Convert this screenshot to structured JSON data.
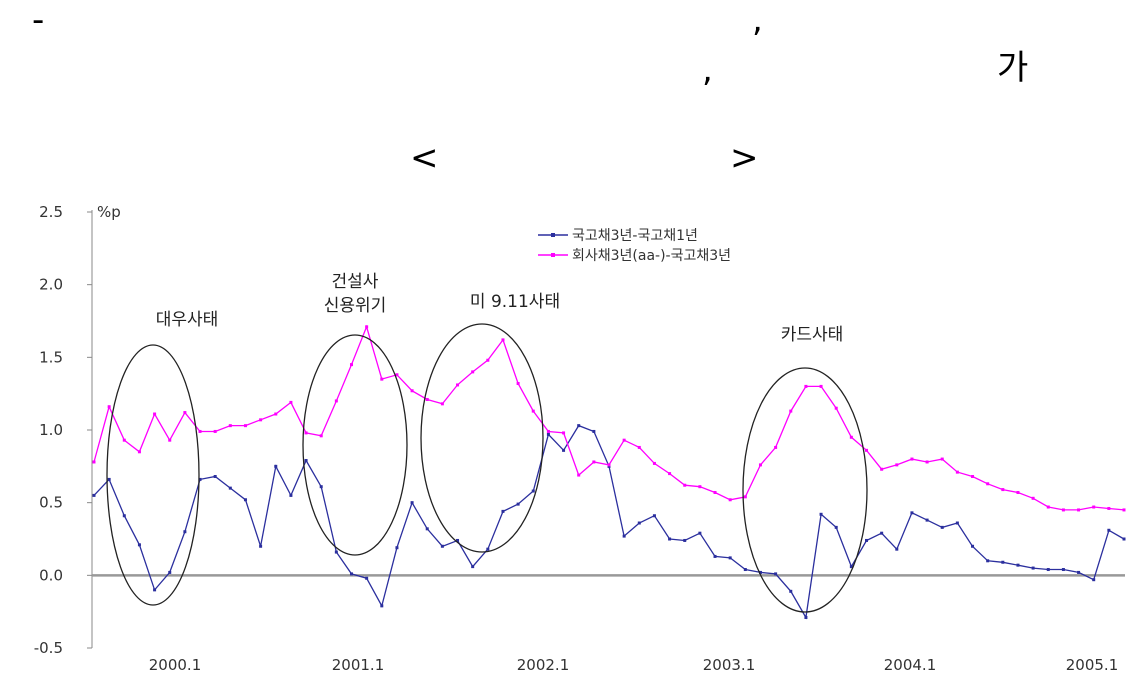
{
  "header": {
    "dash": "-",
    "comma1": ",",
    "comma2": ",",
    "ga": "가",
    "bracket_left": "<",
    "bracket_right": ">"
  },
  "chart_data": {
    "type": "line",
    "ylabel": "%p",
    "ylim": [
      -0.5,
      2.5
    ],
    "yticks": [
      -0.5,
      0.0,
      0.5,
      1.0,
      1.5,
      2.0,
      2.5
    ],
    "ytick_labels": [
      "-0.5",
      "0.0",
      "0.5",
      "1.0",
      "1.5",
      "2.0",
      "2.5"
    ],
    "x_start": "1999.7",
    "x_end": "2005.3",
    "xticks": [
      "2000.1",
      "2001.1",
      "2002.1",
      "2003.1",
      "2004.1",
      "2005.1"
    ],
    "zero_line": true,
    "legend_position": "top-center",
    "series": [
      {
        "name": "국고채3년-국고채1년",
        "color": "#2b2f9e",
        "values": [
          0.55,
          0.66,
          0.41,
          0.21,
          -0.1,
          0.02,
          0.3,
          0.66,
          0.68,
          0.6,
          0.52,
          0.2,
          0.75,
          0.55,
          0.79,
          0.61,
          0.16,
          0.01,
          -0.02,
          -0.21,
          0.19,
          0.5,
          0.32,
          0.2,
          0.24,
          0.06,
          0.18,
          0.44,
          0.49,
          0.58,
          0.97,
          0.86,
          1.03,
          0.99,
          0.75,
          0.27,
          0.36,
          0.41,
          0.25,
          0.24,
          0.29,
          0.13,
          0.12,
          0.04,
          0.02,
          0.01,
          -0.11,
          -0.29,
          0.42,
          0.33,
          0.06,
          0.24,
          0.29,
          0.18,
          0.43,
          0.38,
          0.33,
          0.36,
          0.2,
          0.1,
          0.09,
          0.07,
          0.05,
          0.04,
          0.04,
          0.02,
          -0.03,
          0.31,
          0.25
        ]
      },
      {
        "name": "회사채3년(aa-)-국고채3년",
        "color": "#ff00ff",
        "values": [
          0.78,
          1.16,
          0.93,
          0.85,
          1.11,
          0.93,
          1.12,
          0.99,
          0.99,
          1.03,
          1.03,
          1.07,
          1.11,
          1.19,
          0.98,
          0.96,
          1.2,
          1.45,
          1.71,
          1.35,
          1.38,
          1.27,
          1.21,
          1.18,
          1.31,
          1.4,
          1.48,
          1.62,
          1.32,
          1.13,
          0.99,
          0.98,
          0.69,
          0.78,
          0.76,
          0.93,
          0.88,
          0.77,
          0.7,
          0.62,
          0.61,
          0.57,
          0.52,
          0.54,
          0.76,
          0.88,
          1.13,
          1.3,
          1.3,
          1.15,
          0.95,
          0.86,
          0.73,
          0.76,
          0.8,
          0.78,
          0.8,
          0.71,
          0.68,
          0.63,
          0.59,
          0.57,
          0.53,
          0.47,
          0.45,
          0.45,
          0.47,
          0.46,
          0.45
        ]
      }
    ],
    "annotations": [
      {
        "lines": [
          "대우사태"
        ]
      },
      {
        "lines": [
          "건설사",
          "신용위기"
        ]
      },
      {
        "lines": [
          "미 9.11사태"
        ]
      },
      {
        "lines": [
          "카드사태"
        ]
      }
    ]
  }
}
